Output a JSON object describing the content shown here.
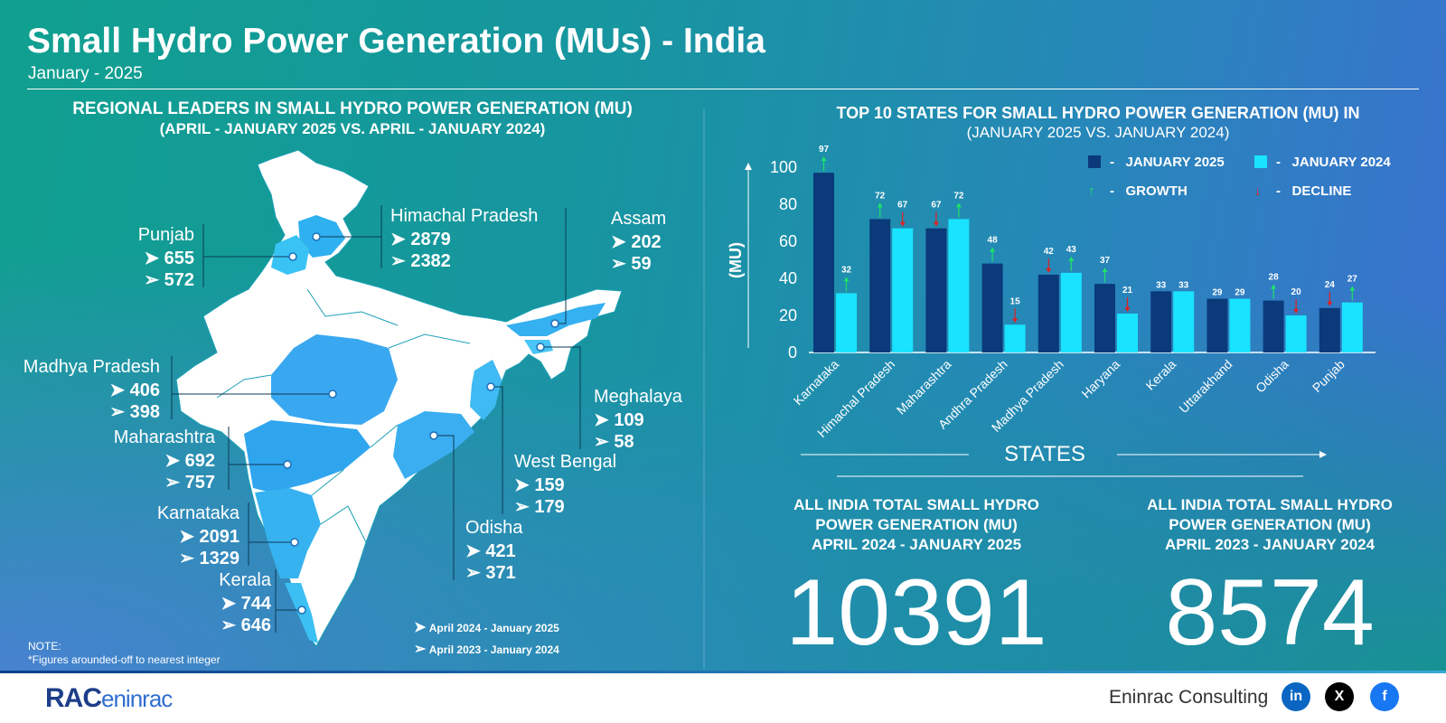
{
  "header": {
    "title": "Small Hydro Power Generation (MUs) - India",
    "subtitle": "January - 2025"
  },
  "map_section": {
    "title_line1": "REGIONAL LEADERS IN SMALL HYDRO POWER GENERATION (MU)",
    "title_line2": "(APRIL - JANUARY 2025 VS. APRIL - JANUARY 2024)",
    "states": [
      {
        "name": "Punjab",
        "current": "655",
        "previous": "572"
      },
      {
        "name": "Himachal Pradesh",
        "current": "2879",
        "previous": "2382"
      },
      {
        "name": "Assam",
        "current": "202",
        "previous": "59"
      },
      {
        "name": "Madhya Pradesh",
        "current": "406",
        "previous": "398"
      },
      {
        "name": "Meghalaya",
        "current": "109",
        "previous": "58"
      },
      {
        "name": "Maharashtra",
        "current": "692",
        "previous": "757"
      },
      {
        "name": "West Bengal",
        "current": "159",
        "previous": "179"
      },
      {
        "name": "Karnataka",
        "current": "2091",
        "previous": "1329"
      },
      {
        "name": "Odisha",
        "current": "421",
        "previous": "371"
      },
      {
        "name": "Kerala",
        "current": "744",
        "previous": "646"
      }
    ],
    "legend_current": "April 2024 - January 2025",
    "legend_previous": "April 2023 - January 2024",
    "note_line1": "NOTE:",
    "note_line2": "*Figures arounded-off to nearest integer"
  },
  "chart_section": {
    "title_line1": "TOP 10 STATES FOR SMALL HYDRO POWER GENERATION (MU) IN",
    "title_line2": "(JANUARY 2025 VS. JANUARY 2024)",
    "legend": {
      "series1": "JANUARY 2025",
      "series2": "JANUARY 2024",
      "growth": "GROWTH",
      "decline": "DECLINE",
      "dash": "-"
    }
  },
  "chart_data": {
    "type": "bar",
    "ylabel": "(MU)",
    "xlabel": "STATES",
    "ylim": [
      0,
      100
    ],
    "yticks": [
      0,
      20,
      40,
      60,
      80,
      100
    ],
    "categories": [
      "Karnataka",
      "Himachal Pradesh",
      "Maharashtra",
      "Andhra Pradesh",
      "Madhya Pradesh",
      "Haryana",
      "Kerala",
      "Uttarakhand",
      "Odisha",
      "Punjab"
    ],
    "series": [
      {
        "name": "JANUARY 2025",
        "values": [
          97,
          72,
          67,
          48,
          42,
          37,
          33,
          29,
          28,
          24
        ],
        "trend": [
          "up",
          "up",
          "down",
          "up",
          "down",
          "up",
          "flat",
          "flat",
          "up",
          "down"
        ]
      },
      {
        "name": "JANUARY 2024",
        "values": [
          32,
          67,
          72,
          15,
          43,
          21,
          33,
          29,
          20,
          27
        ],
        "trend": [
          "up",
          "down",
          "up",
          "down",
          "up",
          "down",
          "flat",
          "flat",
          "down",
          "up"
        ]
      }
    ],
    "colors": {
      "series1": "#0a3a7a",
      "series2": "#19e3ff",
      "growth": "#1ee36a",
      "decline": "#e0201e"
    }
  },
  "totals": [
    {
      "label_line1": "ALL INDIA TOTAL SMALL HYDRO",
      "label_line2": "POWER GENERATION (MU)",
      "label_line3": "APRIL 2024 - JANUARY 2025",
      "value": "10391"
    },
    {
      "label_line1": "ALL INDIA TOTAL SMALL HYDRO",
      "label_line2": "POWER GENERATION (MU)",
      "label_line3": "APRIL 2023 - JANUARY 2024",
      "value": "8574"
    }
  ],
  "footer": {
    "brand": "Eninrac Consulting",
    "logo_main": "RAC",
    "logo_sub": "eninrac",
    "social_icons": [
      "linkedin-icon",
      "x-icon",
      "facebook-icon"
    ]
  }
}
